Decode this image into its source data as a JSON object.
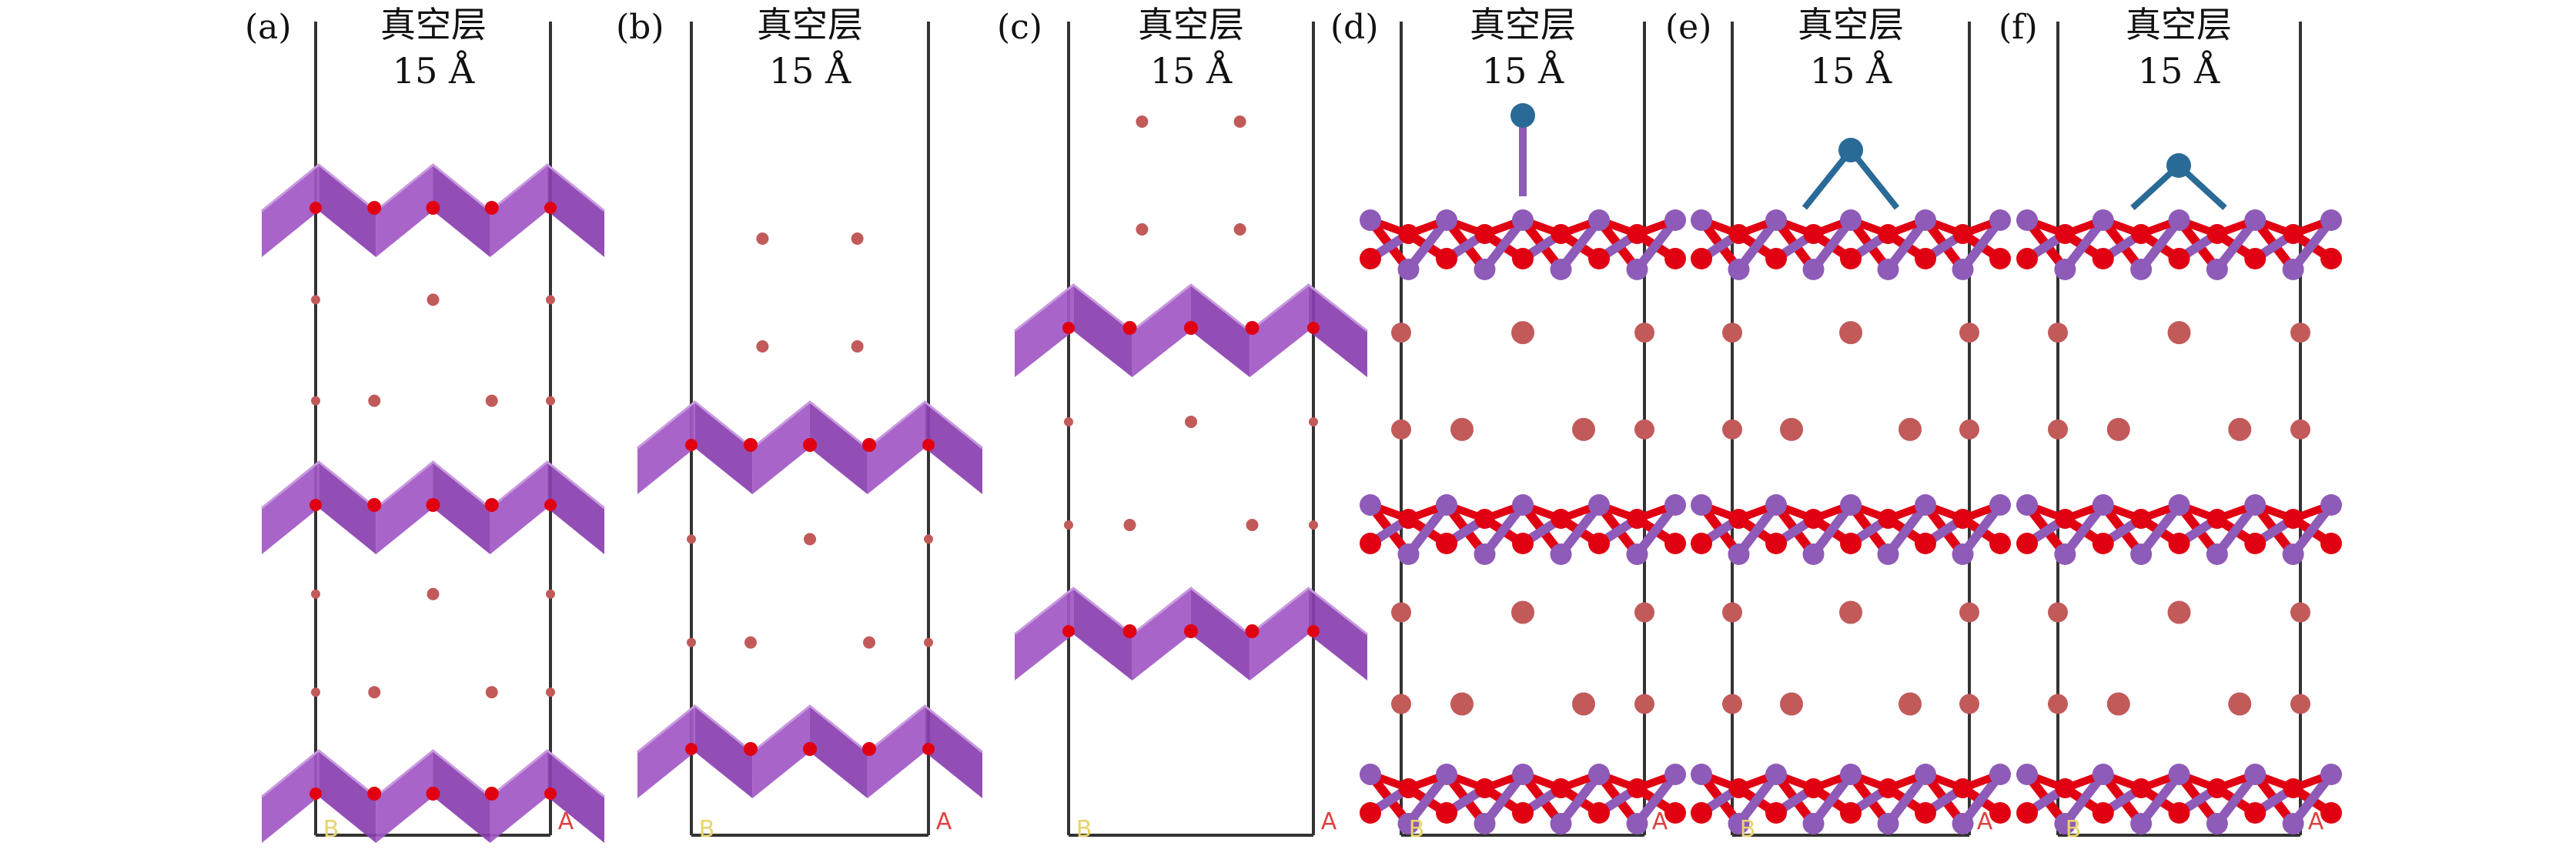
{
  "figure": {
    "panels": [
      {
        "label": "(a)",
        "vacuum_label": "真空层",
        "thickness_label": "15 Å",
        "style": "polyhedra",
        "layers": 3,
        "adatom": "none"
      },
      {
        "label": "(b)",
        "vacuum_label": "真空层",
        "thickness_label": "15 Å",
        "style": "polyhedra",
        "layers": 2,
        "adatom": "none"
      },
      {
        "label": "(c)",
        "vacuum_label": "真空层",
        "thickness_label": "15 Å",
        "style": "polyhedra",
        "layers": 2,
        "adatom": "none"
      },
      {
        "label": "(d)",
        "vacuum_label": "真空层",
        "thickness_label": "15 Å",
        "style": "ball-stick",
        "layers": 3,
        "adatom": "top"
      },
      {
        "label": "(e)",
        "vacuum_label": "真空层",
        "thickness_label": "15 Å",
        "style": "ball-stick",
        "layers": 3,
        "adatom": "bridge-high"
      },
      {
        "label": "(f)",
        "vacuum_label": "真空层",
        "thickness_label": "15 Å",
        "style": "ball-stick",
        "layers": 3,
        "adatom": "bridge-low"
      }
    ],
    "axis_labels": {
      "b": "B",
      "a": "A"
    },
    "colors": {
      "polyhedron": "#a257c6",
      "polyhedron_dark": "#8a3fb0",
      "oxygen": "#e00012",
      "metal": "#8e5bb8",
      "interlayer": "#c25a5a",
      "adatom": "#2a6a96",
      "cell": "#333333",
      "b_axis": "#e8d46a",
      "a_axis": "#e04040"
    }
  }
}
